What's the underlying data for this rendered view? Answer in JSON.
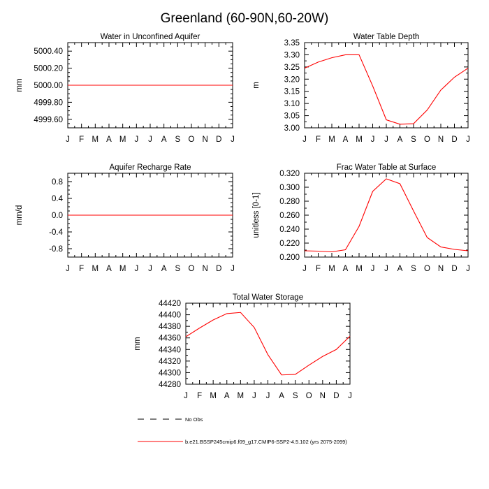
{
  "figure": {
    "title": "Greenland (60-90N,60-20W)"
  },
  "legend": {
    "entries": [
      {
        "label": "No Obs",
        "style": "dashed",
        "color": "#000000"
      },
      {
        "label": "b.e21.BSSP245cmip6.f09_g17.CMIP6-SSP2-4.5.102 (yrs 2075-2099)",
        "style": "solid",
        "color": "#ff0000"
      }
    ]
  },
  "chart_data": [
    {
      "id": "p1",
      "type": "line",
      "title": "Water in Unconfined Aquifer",
      "ylabel": "mm",
      "xlabel": "",
      "x_labels": [
        "J",
        "F",
        "M",
        "A",
        "M",
        "J",
        "J",
        "A",
        "S",
        "O",
        "N",
        "D",
        "J"
      ],
      "ylim": [
        4999.5,
        5000.5
      ],
      "yticks": [
        4999.6,
        4999.8,
        5000.0,
        5000.2,
        5000.4
      ],
      "ytick_labels": [
        "4999.60",
        "4999.80",
        "5000.00",
        "5000.20",
        "5000.40"
      ],
      "minor_step": 0.05,
      "series": [
        {
          "name": "b.e21.BSSP245cmip6.f09_g17.CMIP6-SSP2-4.5.102 (yrs 2075-2099)",
          "color": "#ff0000",
          "values": [
            5000,
            5000,
            5000,
            5000,
            5000,
            5000,
            5000,
            5000,
            5000,
            5000,
            5000,
            5000,
            5000
          ]
        }
      ]
    },
    {
      "id": "p2",
      "type": "line",
      "title": "Water Table Depth",
      "ylabel": "m",
      "xlabel": "",
      "x_labels": [
        "J",
        "F",
        "M",
        "A",
        "M",
        "J",
        "J",
        "A",
        "S",
        "O",
        "N",
        "D",
        "J"
      ],
      "ylim": [
        3.0,
        3.35
      ],
      "yticks": [
        3.0,
        3.05,
        3.1,
        3.15,
        3.2,
        3.25,
        3.3,
        3.35
      ],
      "ytick_labels": [
        "3.00",
        "3.05",
        "3.10",
        "3.15",
        "3.20",
        "3.25",
        "3.30",
        "3.35"
      ],
      "minor_step": 0.025,
      "series": [
        {
          "name": "b.e21.BSSP245cmip6.f09_g17.CMIP6-SSP2-4.5.102 (yrs 2075-2099)",
          "color": "#ff0000",
          "values": [
            3.245,
            3.27,
            3.288,
            3.3,
            3.3,
            3.172,
            3.033,
            3.015,
            3.017,
            3.073,
            3.155,
            3.208,
            3.245
          ]
        }
      ]
    },
    {
      "id": "p3",
      "type": "line",
      "title": "Aquifer Recharge Rate",
      "ylabel": "mm/d",
      "xlabel": "",
      "x_labels": [
        "J",
        "F",
        "M",
        "A",
        "M",
        "J",
        "J",
        "A",
        "S",
        "O",
        "N",
        "D",
        "J"
      ],
      "ylim": [
        -1.0,
        1.0
      ],
      "yticks": [
        -0.8,
        -0.4,
        0.0,
        0.4,
        0.8
      ],
      "ytick_labels": [
        "-0.8",
        "-0.4",
        "0.0",
        "0.4",
        "0.8"
      ],
      "minor_step": 0.1,
      "series": [
        {
          "name": "b.e21.BSSP245cmip6.f09_g17.CMIP6-SSP2-4.5.102 (yrs 2075-2099)",
          "color": "#ff0000",
          "values": [
            0,
            0,
            0,
            0,
            0,
            0,
            0,
            0,
            0,
            0,
            0,
            0,
            0
          ]
        }
      ]
    },
    {
      "id": "p4",
      "type": "line",
      "title": "Frac Water Table at Surface",
      "ylabel": "unitless [0-1]",
      "xlabel": "",
      "x_labels": [
        "J",
        "F",
        "M",
        "A",
        "M",
        "J",
        "J",
        "A",
        "S",
        "O",
        "N",
        "D",
        "J"
      ],
      "ylim": [
        0.2,
        0.32
      ],
      "yticks": [
        0.2,
        0.22,
        0.24,
        0.26,
        0.28,
        0.3,
        0.32
      ],
      "ytick_labels": [
        "0.200",
        "0.220",
        "0.240",
        "0.260",
        "0.280",
        "0.300",
        "0.320"
      ],
      "minor_step": 0.01,
      "series": [
        {
          "name": "b.e21.BSSP245cmip6.f09_g17.CMIP6-SSP2-4.5.102 (yrs 2075-2099)",
          "color": "#ff0000",
          "values": [
            0.209,
            0.2085,
            0.2075,
            0.2105,
            0.244,
            0.294,
            0.312,
            0.305,
            0.266,
            0.228,
            0.2145,
            0.211,
            0.209
          ]
        }
      ]
    },
    {
      "id": "p5",
      "type": "line",
      "title": "Total Water Storage",
      "ylabel": "mm",
      "xlabel": "",
      "x_labels": [
        "J",
        "F",
        "M",
        "A",
        "M",
        "J",
        "J",
        "A",
        "S",
        "O",
        "N",
        "D",
        "J"
      ],
      "ylim": [
        44280,
        44420
      ],
      "yticks": [
        44280,
        44300,
        44320,
        44340,
        44360,
        44380,
        44400,
        44420
      ],
      "ytick_labels": [
        "44280",
        "44300",
        "44320",
        "44340",
        "44360",
        "44380",
        "44400",
        "44420"
      ],
      "minor_step": 10,
      "series": [
        {
          "name": "b.e21.BSSP245cmip6.f09_g17.CMIP6-SSP2-4.5.102 (yrs 2075-2099)",
          "color": "#ff0000",
          "values": [
            44362,
            44377,
            44391,
            44402,
            44404,
            44378,
            44331,
            44296,
            44297,
            44313,
            44328,
            44340,
            44363
          ]
        }
      ]
    }
  ]
}
